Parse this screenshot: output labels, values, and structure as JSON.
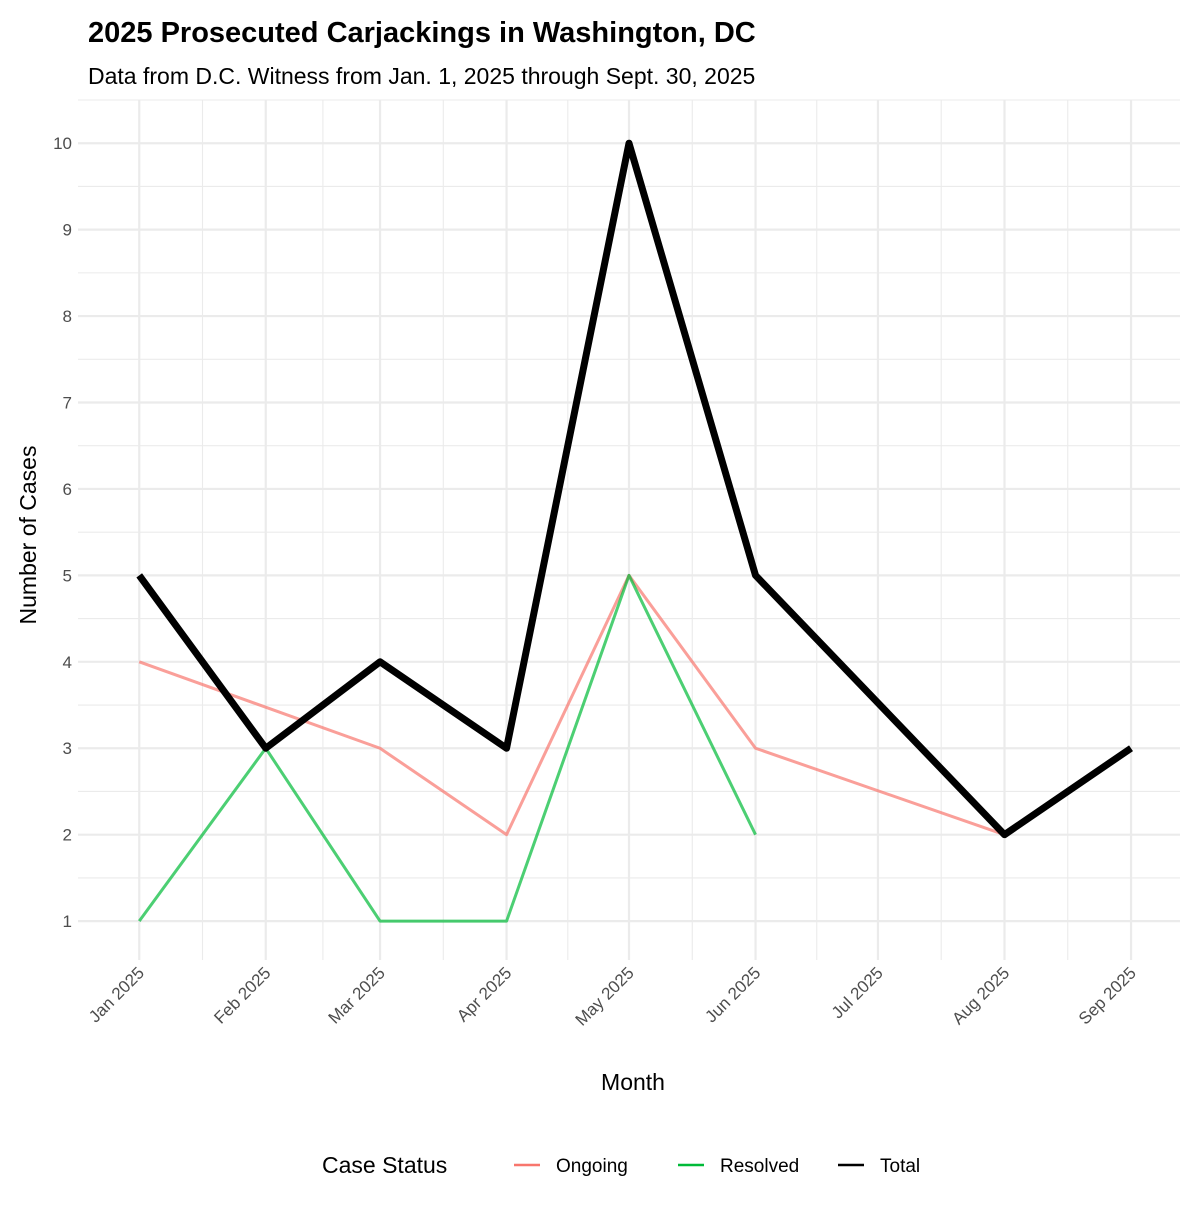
{
  "chart_data": {
    "type": "line",
    "title": "2025 Prosecuted Carjackings in Washington, DC",
    "subtitle": "Data from D.C. Witness from Jan. 1, 2025 through Sept. 30, 2025",
    "xlabel": "Month",
    "ylabel": "Number of Cases",
    "x_ticks": [
      "Jan 2025",
      "Feb 2025",
      "Mar 2025",
      "Apr 2025",
      "May 2025",
      "Jun 2025",
      "Jul 2025",
      "Aug 2025",
      "Sep 2025"
    ],
    "x_tick_days": [
      0,
      31,
      59,
      90,
      120,
      151,
      181,
      212,
      243
    ],
    "y_ticks": [
      1,
      2,
      3,
      4,
      5,
      6,
      7,
      8,
      9,
      10
    ],
    "ylim": [
      0.55,
      10.5
    ],
    "xlim_days": [
      -15,
      255
    ],
    "grid": true,
    "legend": {
      "title": "Case Status",
      "placement": "bottom"
    },
    "series": [
      {
        "name": "Ongoing",
        "color": "#F8766D",
        "points": [
          [
            "Jan 2025",
            4
          ],
          [
            "Mar 2025",
            3
          ],
          [
            "Apr 2025",
            2
          ],
          [
            "May 2025",
            5
          ],
          [
            "Jun 2025",
            3
          ],
          [
            "Aug 2025",
            2
          ]
        ]
      },
      {
        "name": "Resolved",
        "color": "#00BA38",
        "points": [
          [
            "Jan 2025",
            1
          ],
          [
            "Feb 2025",
            3
          ],
          [
            "Mar 2025",
            1
          ],
          [
            "Apr 2025",
            1
          ],
          [
            "May 2025",
            5
          ],
          [
            "Jun 2025",
            2
          ]
        ]
      },
      {
        "name": "Total",
        "color": "#000000",
        "points": [
          [
            "Jan 2025",
            5
          ],
          [
            "Feb 2025",
            3
          ],
          [
            "Mar 2025",
            4
          ],
          [
            "Apr 2025",
            3
          ],
          [
            "May 2025",
            10
          ],
          [
            "Jun 2025",
            5
          ],
          [
            "Aug 2025",
            2
          ],
          [
            "Sep 2025",
            3
          ]
        ]
      }
    ]
  }
}
